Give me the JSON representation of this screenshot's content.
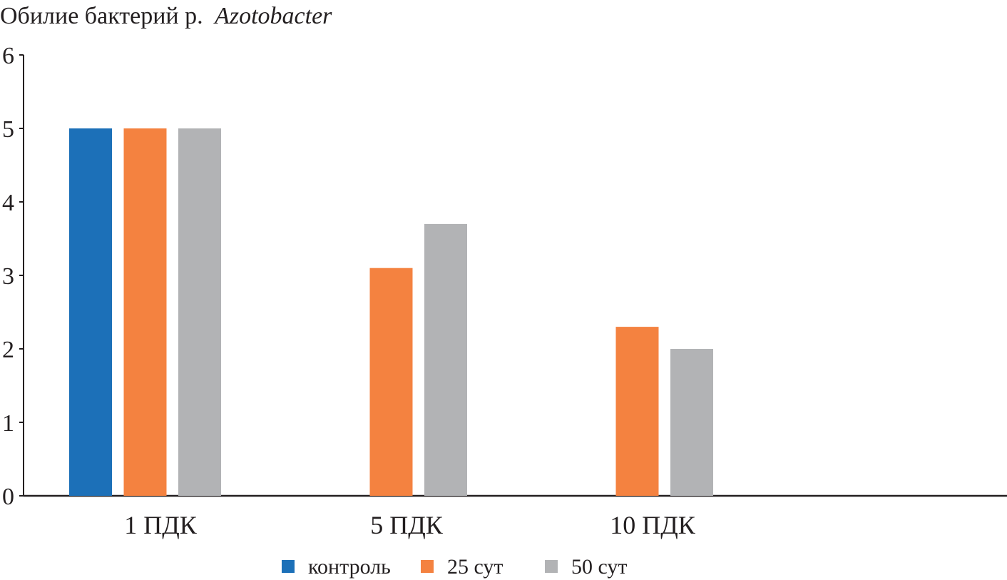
{
  "chart_data": {
    "type": "bar",
    "title": "Обилие бактерий р.",
    "title_italic": "Azotobacter",
    "categories": [
      "1 ПДК",
      "5 ПДК",
      "10 ПДК"
    ],
    "series": [
      {
        "name": "контроль",
        "color": "#1c70b8",
        "values": [
          5,
          null,
          null
        ]
      },
      {
        "name": "25 сут",
        "color": "#f48240",
        "values": [
          5,
          3.1,
          2.3
        ]
      },
      {
        "name": "50 сут",
        "color": "#b2b3b5",
        "values": [
          5,
          3.7,
          2.0
        ]
      }
    ],
    "ylim": [
      0,
      6
    ],
    "yticks": [
      "0",
      "1",
      "2",
      "3",
      "4",
      "5",
      "6"
    ],
    "xlabel": "",
    "ylabel": "",
    "grid": false,
    "legend_position": "bottom"
  }
}
